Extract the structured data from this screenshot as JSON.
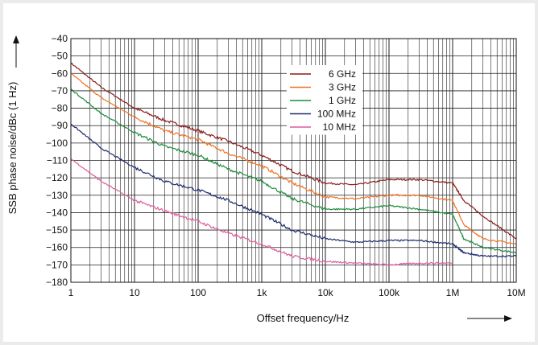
{
  "chart_data": {
    "type": "line",
    "xlabel": "Offset frequency/Hz",
    "ylabel": "SSB phase noise/dBc (1 Hz)",
    "xscale": "log",
    "xlim": [
      1,
      10000000
    ],
    "ylim": [
      -180,
      -40
    ],
    "grid": true,
    "legend_position": "center",
    "x_tick_labels": [
      "1",
      "10",
      "100",
      "1k",
      "10k",
      "100k",
      "1M",
      "10M"
    ],
    "y_tick_labels": [
      "-40",
      "-50",
      "-60",
      "-70",
      "-80",
      "-90",
      "-100",
      "-110",
      "-120",
      "-130",
      "-140",
      "-150",
      "-160",
      "-170",
      "-180"
    ],
    "x": [
      1,
      3,
      10,
      30,
      100,
      300,
      1000,
      3000,
      10000,
      30000,
      100000,
      300000,
      1000000,
      1500000,
      3000000,
      10000000
    ],
    "series": [
      {
        "name": "6 GHz",
        "color": "#8b1a1a",
        "values": [
          -54,
          -68,
          -80,
          -87,
          -93,
          -99,
          -107,
          -116,
          -123,
          -124,
          -121,
          -121,
          -123,
          -133,
          -142,
          -155
        ]
      },
      {
        "name": "3 GHz",
        "color": "#f07020",
        "values": [
          -60,
          -74,
          -85,
          -93,
          -98,
          -106,
          -113,
          -123,
          -131,
          -132,
          -130,
          -130,
          -133,
          -147,
          -155,
          -158
        ]
      },
      {
        "name": "1 GHz",
        "color": "#1c8c3c",
        "values": [
          -69,
          -83,
          -94,
          -102,
          -107,
          -115,
          -122,
          -132,
          -138,
          -138,
          -136,
          -138,
          -141,
          -155,
          -160,
          -163
        ]
      },
      {
        "name": "100 MHz",
        "color": "#1e2a6e",
        "values": [
          -89,
          -103,
          -114,
          -122,
          -127,
          -133,
          -141,
          -150,
          -155,
          -157,
          -156,
          -156,
          -158,
          -163,
          -165,
          -165
        ]
      },
      {
        "name": "10 MHz",
        "color": "#e05a9a",
        "values": [
          -109,
          -122,
          -133,
          -139,
          -145,
          -152,
          -158,
          -165,
          -168,
          -169,
          -170,
          -169,
          -169,
          null,
          null,
          null
        ]
      }
    ]
  }
}
